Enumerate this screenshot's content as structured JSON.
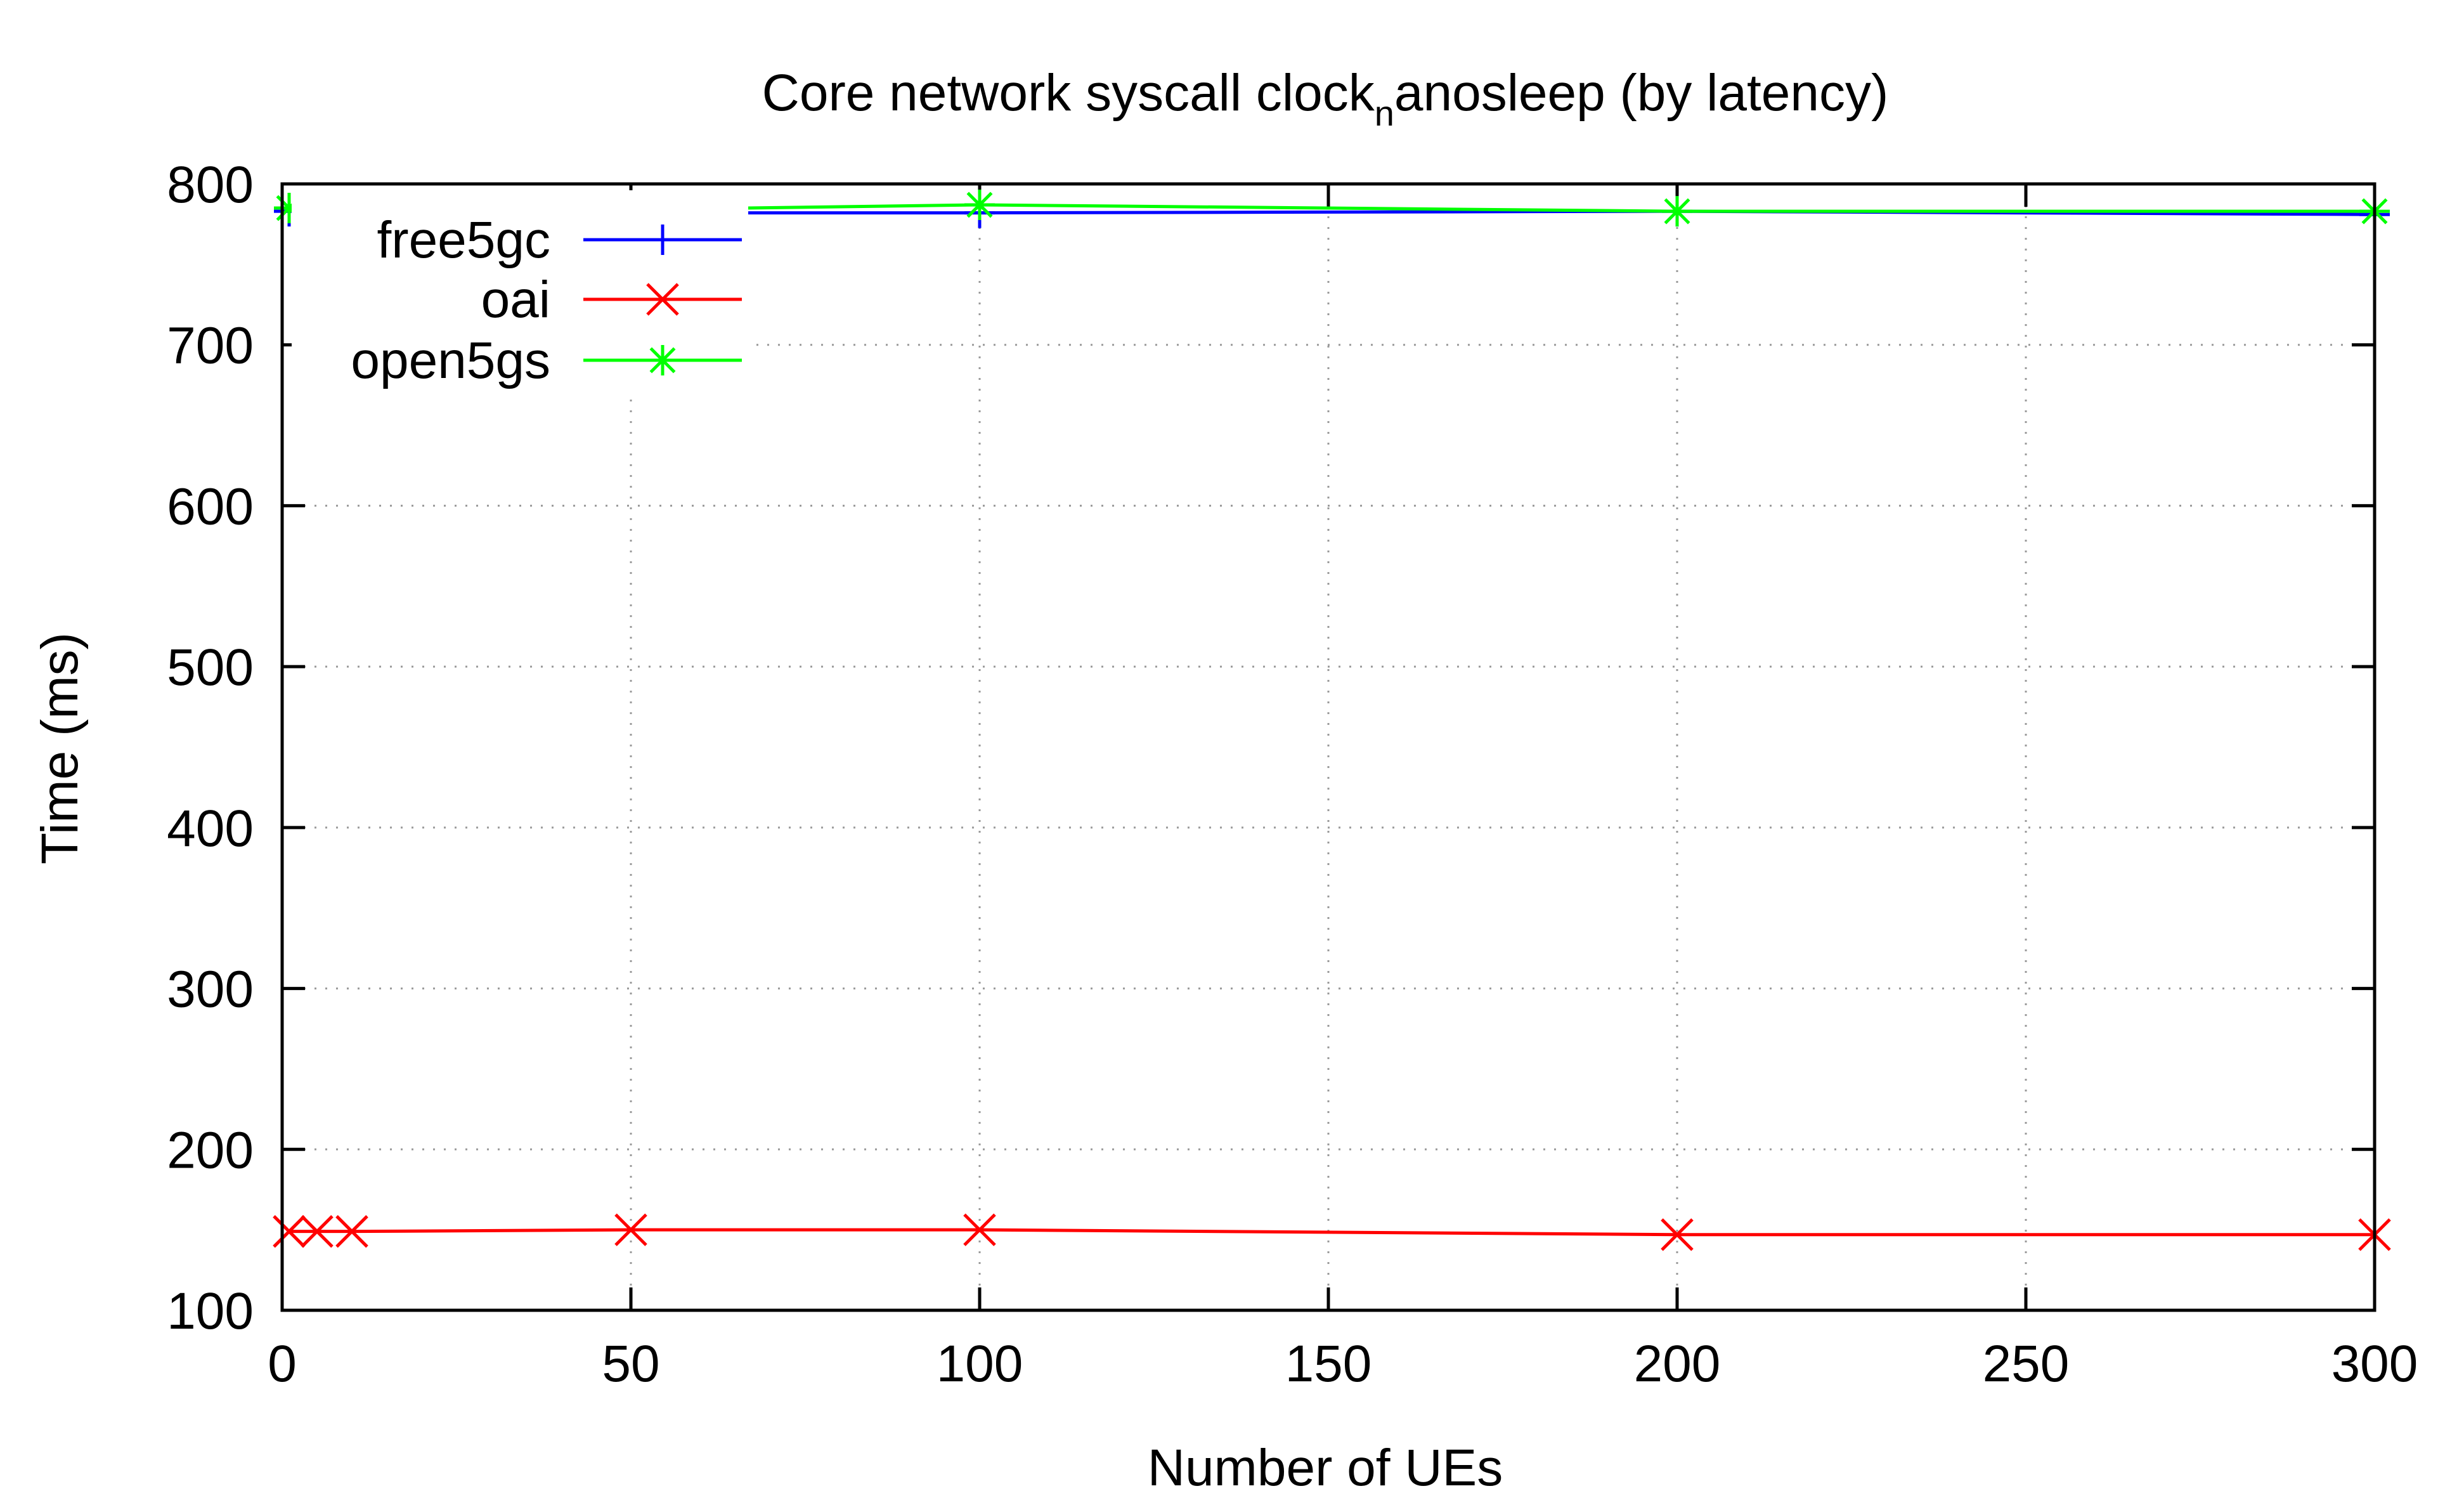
{
  "chart_data": {
    "type": "line",
    "title_main": "Core network syscall clock",
    "title_sub": "n",
    "title_rest": "anosleep (by latency)",
    "xlabel": "Number of UEs",
    "ylabel": "Time (ms)",
    "xlim": [
      0,
      300
    ],
    "ylim": [
      100,
      800
    ],
    "xticks": [
      0,
      50,
      100,
      150,
      200,
      250,
      300
    ],
    "yticks": [
      100,
      200,
      300,
      400,
      500,
      600,
      700,
      800
    ],
    "xtick_labels": [
      "0",
      "50",
      "100",
      "150",
      "200",
      "250",
      "300"
    ],
    "ytick_labels": [
      "100",
      "200",
      "300",
      "400",
      "500",
      "600",
      "700",
      "800"
    ],
    "grid": true,
    "legend_position": "top-left",
    "series": [
      {
        "name": "free5gc",
        "color": "#0000ff",
        "marker": "plus",
        "x": [
          1,
          5,
          10,
          50,
          100,
          200,
          300
        ],
        "y": [
          783,
          783,
          782,
          782,
          782,
          783,
          781
        ]
      },
      {
        "name": "oai",
        "color": "#ff0000",
        "marker": "cross",
        "x": [
          1,
          5,
          10,
          50,
          100,
          200,
          300
        ],
        "y": [
          149,
          149,
          149,
          150,
          150,
          147,
          147
        ]
      },
      {
        "name": "open5gs",
        "color": "#00ff00",
        "marker": "star",
        "x": [
          1,
          5,
          10,
          50,
          100,
          200,
          300
        ],
        "y": [
          785,
          785,
          784,
          784,
          787,
          783,
          783
        ]
      }
    ]
  }
}
